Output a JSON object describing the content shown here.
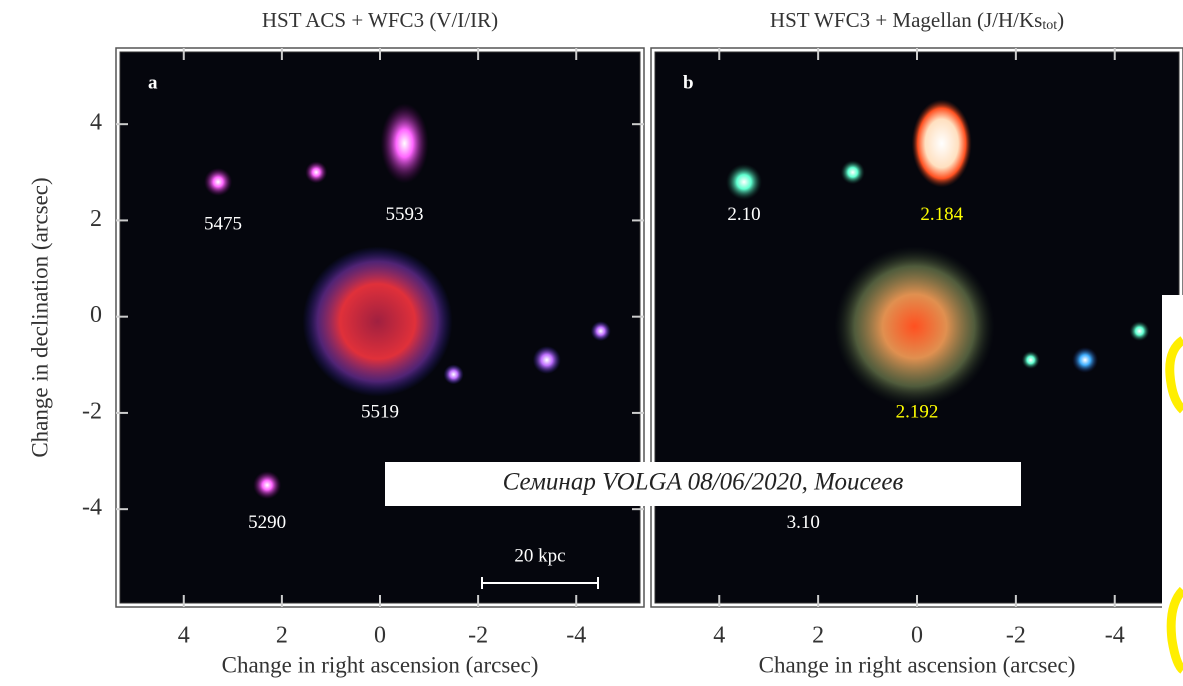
{
  "panels": [
    {
      "title": "HST ACS + WFC3 (V/I/IR)",
      "letter": "a",
      "xlabel": "Change in right ascension (arcsec)",
      "ylabel": "Change in  declination (arcsec)",
      "xlim": [
        5.3,
        -5.3
      ],
      "ylim": [
        -5.95,
        5.5
      ],
      "xticks": [
        4,
        2,
        0,
        -2,
        -4
      ],
      "yticks": [
        4,
        2,
        0,
        -2,
        -4
      ],
      "labels": [
        "5475",
        "5593",
        "5519",
        "5290"
      ],
      "scalebar": "20 kpc"
    },
    {
      "title": "HST WFC3 + Magellan (J/H/Ks",
      "title_sub": "tot",
      "title_end": ")",
      "letter": "b",
      "xlabel": "Change in right ascension (arcsec)",
      "xlim": [
        5.3,
        -5.3
      ],
      "ylim": [
        -5.95,
        5.5
      ],
      "xticks": [
        4,
        2,
        0,
        -2,
        -4
      ],
      "labels": [
        "2.10",
        "2.184",
        "2.192",
        "3.10"
      ]
    }
  ],
  "watermark": "Семинар VOLGA 08/06/2020,  Моисеев"
}
